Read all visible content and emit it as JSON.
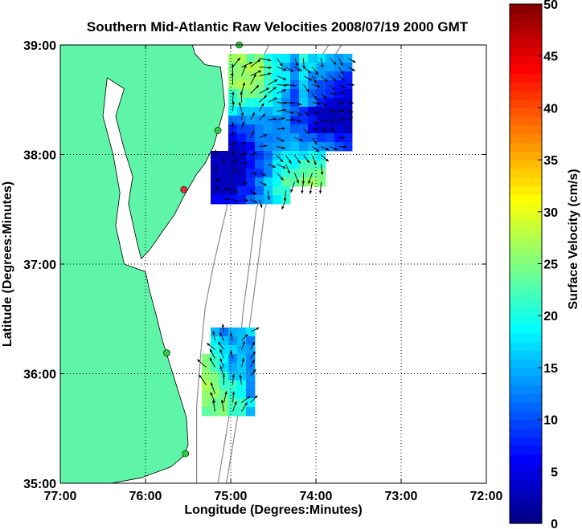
{
  "chart_data": {
    "type": "map",
    "title": "Southern Mid-Atlantic Raw Velocities 2008/07/19 2000 GMT",
    "xlabel": "Longitude (Degrees:Minutes)",
    "ylabel": "Latitude (Degrees:Minutes)",
    "xlim": [
      -77,
      -72
    ],
    "ylim": [
      35,
      39
    ],
    "x_ticks": [
      {
        "value": -77,
        "label": "77:00"
      },
      {
        "value": -76,
        "label": "76:00"
      },
      {
        "value": -75,
        "label": "75:00"
      },
      {
        "value": -74,
        "label": "74:00"
      },
      {
        "value": -73,
        "label": "73:00"
      },
      {
        "value": -72,
        "label": "72:00"
      }
    ],
    "y_ticks": [
      {
        "value": 35,
        "label": "35:00"
      },
      {
        "value": 36,
        "label": "36:00"
      },
      {
        "value": 37,
        "label": "37:00"
      },
      {
        "value": 38,
        "label": "38:00"
      },
      {
        "value": 39,
        "label": "39:00"
      }
    ],
    "grid": true,
    "colorbar": {
      "label": "Surface Velocity (cm/s)",
      "range": [
        0,
        50
      ],
      "ticks": [
        {
          "value": 0,
          "label": "0"
        },
        {
          "value": 5,
          "label": "5"
        },
        {
          "value": 10,
          "label": "10"
        },
        {
          "value": 15,
          "label": "15"
        },
        {
          "value": 20,
          "label": "20"
        },
        {
          "value": 25,
          "label": "25"
        },
        {
          "value": 30,
          "label": "30"
        },
        {
          "value": 35,
          "label": "35"
        },
        {
          "value": 40,
          "label": "40"
        },
        {
          "value": 45,
          "label": "45"
        },
        {
          "value": 50,
          "label": "50"
        }
      ]
    },
    "stations": [
      {
        "lon": -74.9,
        "lat": 39.0,
        "status": "active"
      },
      {
        "lon": -75.15,
        "lat": 38.22,
        "status": "active"
      },
      {
        "lon": -75.55,
        "lat": 37.68,
        "status": "inactive"
      },
      {
        "lon": -75.75,
        "lat": 36.19,
        "status": "active"
      },
      {
        "lon": -75.53,
        "lat": 35.27,
        "status": "active"
      }
    ]
  },
  "colors": {
    "land": "#5ff5a8",
    "title": "#0000ff",
    "station_active": "#2ecc40",
    "station_inactive": "#e53030",
    "bathymetry": "#8a8a8a",
    "arrows": "#000000"
  }
}
